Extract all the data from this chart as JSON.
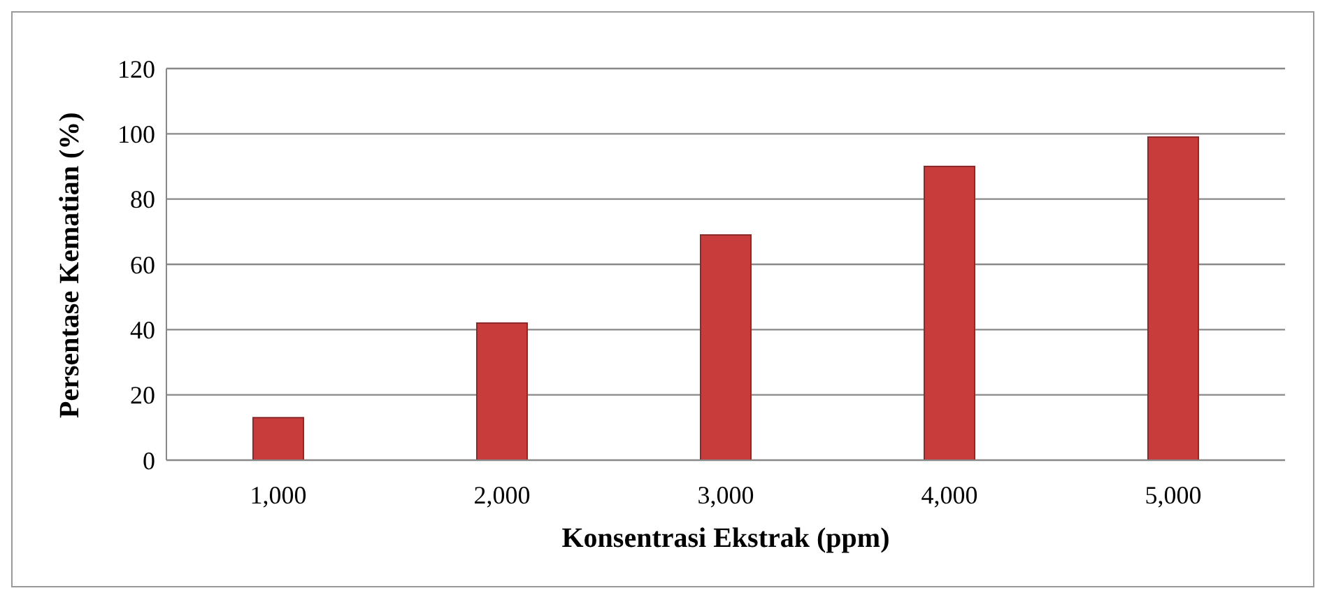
{
  "chart_data": {
    "type": "bar",
    "xlabel": "Konsentrasi Ekstrak (ppm)",
    "ylabel": "Persentase Kematian (%)",
    "categories": [
      "1,000",
      "2,000",
      "3,000",
      "4,000",
      "5,000"
    ],
    "values": [
      13,
      42,
      69,
      90,
      99
    ],
    "color": "#c83c3c",
    "ylim": [
      0,
      120
    ],
    "yticks": [
      0,
      20,
      40,
      60,
      80,
      100,
      120
    ],
    "grid": "y"
  }
}
